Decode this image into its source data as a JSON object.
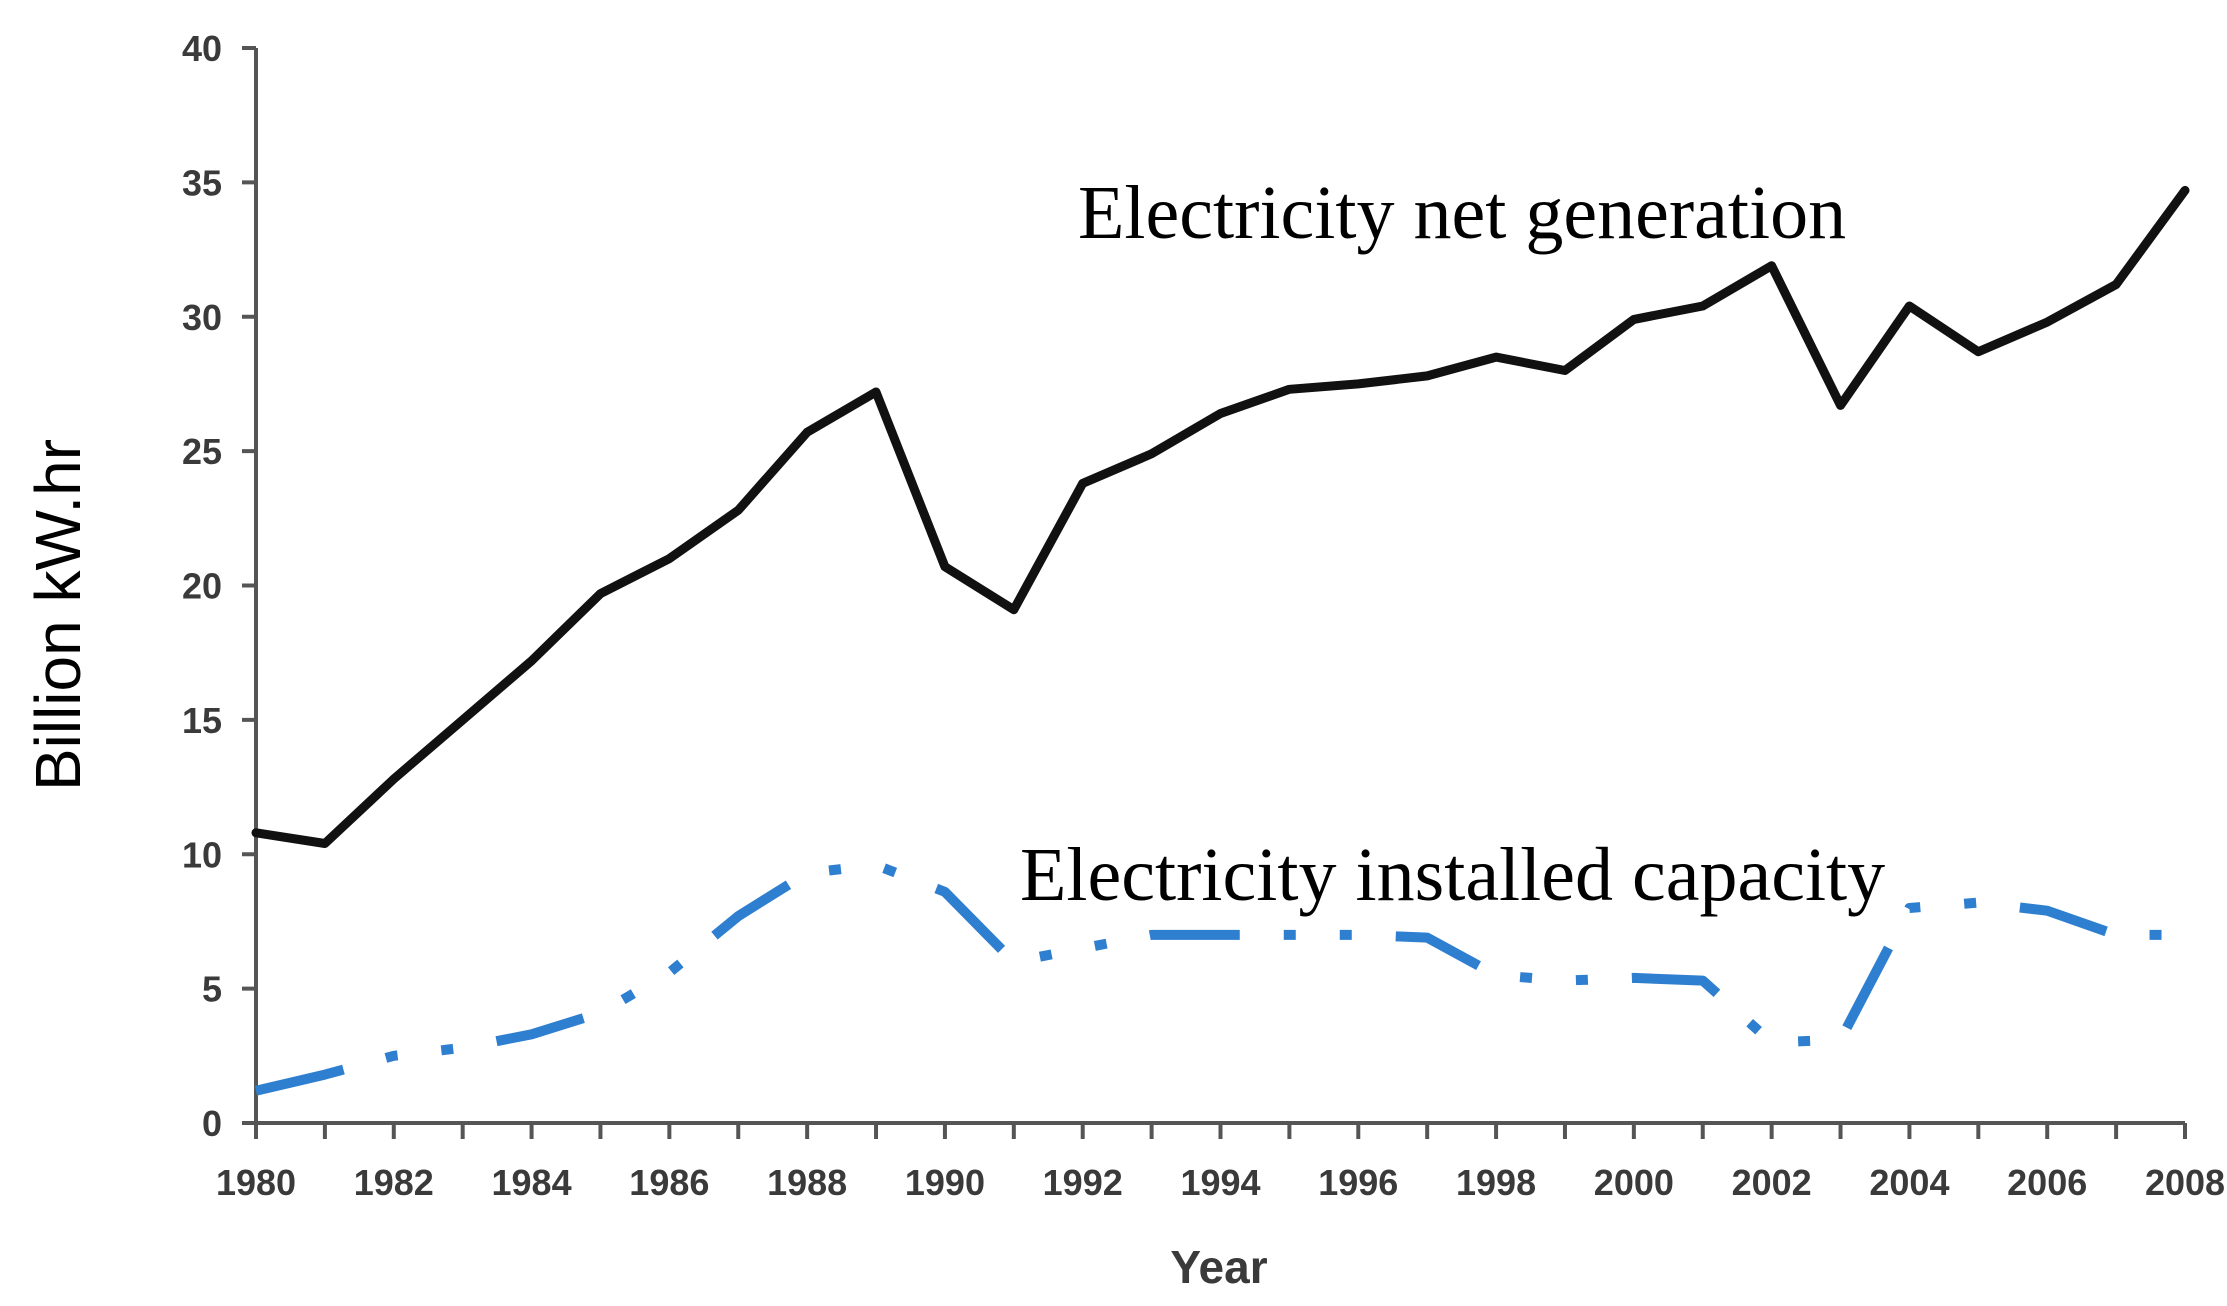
{
  "chart_data": {
    "type": "line",
    "xlabel": "Year",
    "ylabel": "Billion kW.hr",
    "xlim": [
      1980,
      2008
    ],
    "ylim": [
      0,
      40
    ],
    "x_ticks": [
      1980,
      1982,
      1984,
      1986,
      1988,
      1990,
      1992,
      1994,
      1996,
      1998,
      2000,
      2002,
      2004,
      2006,
      2008
    ],
    "y_ticks": [
      0,
      5,
      10,
      15,
      20,
      25,
      30,
      35,
      40
    ],
    "grid": false,
    "legend": "none",
    "series": [
      {
        "name": "Electricity net generation",
        "color": "#111111",
        "style": "solid",
        "x": [
          1980,
          1981,
          1982,
          1983,
          1984,
          1985,
          1986,
          1987,
          1988,
          1989,
          1990,
          1991,
          1992,
          1993,
          1994,
          1995,
          1996,
          1997,
          1998,
          1999,
          2000,
          2001,
          2002,
          2003,
          2004,
          2005,
          2006,
          2007,
          2008
        ],
        "y": [
          10.8,
          10.4,
          12.8,
          15.0,
          17.2,
          19.7,
          21.0,
          22.8,
          25.7,
          27.2,
          20.7,
          19.1,
          23.8,
          24.9,
          26.4,
          27.3,
          27.5,
          27.8,
          28.5,
          28.0,
          29.9,
          30.4,
          31.9,
          26.7,
          30.4,
          28.7,
          29.8,
          31.2,
          34.7
        ]
      },
      {
        "name": "Electricity installed capacity",
        "color": "#2f7fd0",
        "style": "dash-dot-dot",
        "x": [
          1980,
          1981,
          1982,
          1983,
          1984,
          1985,
          1986,
          1987,
          1988,
          1989,
          1990,
          1991,
          1992,
          1993,
          1994,
          1995,
          1996,
          1997,
          1998,
          1999,
          2000,
          2001,
          2002,
          2003,
          2004,
          2005,
          2006,
          2007,
          2008
        ],
        "y": [
          1.2,
          1.8,
          2.5,
          2.8,
          3.3,
          4.1,
          5.6,
          7.7,
          9.3,
          9.6,
          8.6,
          6.0,
          6.5,
          7.0,
          7.0,
          7.0,
          7.0,
          6.9,
          5.5,
          5.3,
          5.4,
          5.3,
          3.0,
          3.1,
          8.0,
          8.2,
          7.9,
          7.0,
          7.0
        ]
      }
    ],
    "annotations": [
      {
        "text": "Electricity net generation",
        "series": 0
      },
      {
        "text": "Electricity installed capacity",
        "series": 1
      }
    ]
  }
}
